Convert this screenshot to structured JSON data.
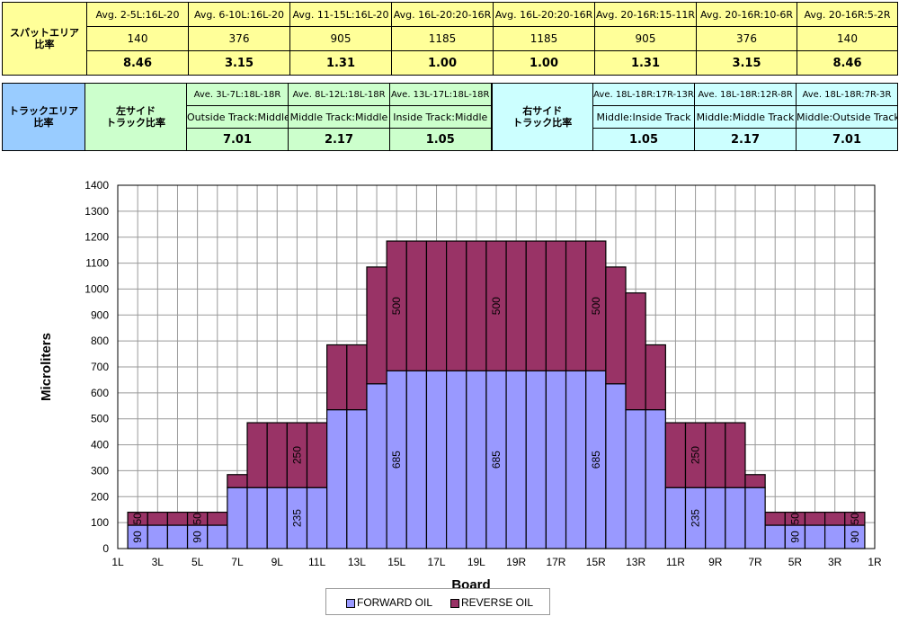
{
  "spot_table": {
    "label": "スパットエリア\n比率",
    "headers": [
      "Avg. 2-5L:16L-20",
      "Avg. 6-10L:16L-20",
      "Avg. 11-15L:16L-20",
      "Avg. 16L-20:20-16R",
      "Avg. 16L-20:20-16R",
      "Avg. 20-16R:15-11R",
      "Avg. 20-16R:10-6R",
      "Avg. 20-16R:5-2R"
    ],
    "values": [
      "140",
      "376",
      "905",
      "1185",
      "1185",
      "905",
      "376",
      "140"
    ],
    "ratios": [
      "8.46",
      "3.15",
      "1.31",
      "1.00",
      "1.00",
      "1.31",
      "3.15",
      "8.46"
    ]
  },
  "track_table": {
    "label": "トラックエリア\n比率",
    "left_label": "左サイド\nトラック比率",
    "right_label": "右サイド\nトラック比率",
    "left_headers": [
      "Ave. 3L-7L:18L-18R",
      "Ave. 8L-12L:18L-18R",
      "Ave. 13L-17L:18L-18R"
    ],
    "left_tracks": [
      "Outside Track:Middle",
      "Middle Track:Middle",
      "Inside Track:Middle"
    ],
    "left_ratios": [
      "7.01",
      "2.17",
      "1.05"
    ],
    "right_headers": [
      "Ave. 18L-18R:17R-13R",
      "Ave. 18L-18R:12R-8R",
      "Ave. 18L-18R:7R-3R"
    ],
    "right_tracks": [
      "Middle:Inside Track",
      "Middle:Middle Track",
      "Middle:Outside Track"
    ],
    "right_ratios": [
      "1.05",
      "2.17",
      "7.01"
    ]
  },
  "chart_data": {
    "type": "bar",
    "stacked": true,
    "xlabel": "Board",
    "ylabel": "Microliters",
    "ylim": [
      0,
      1400
    ],
    "yticks": [
      0,
      100,
      200,
      300,
      400,
      500,
      600,
      700,
      800,
      900,
      1000,
      1100,
      1200,
      1300,
      1400
    ],
    "x_tick_labels": [
      "1L",
      "3L",
      "5L",
      "7L",
      "9L",
      "11L",
      "13L",
      "15L",
      "17L",
      "19L",
      "19R",
      "17R",
      "15R",
      "13R",
      "11R",
      "9R",
      "7R",
      "5R",
      "3R",
      "1R"
    ],
    "categories": [
      "1L",
      "2L",
      "3L",
      "4L",
      "5L",
      "6L",
      "7L",
      "8L",
      "9L",
      "10L",
      "11L",
      "12L",
      "13L",
      "14L",
      "15L",
      "16L",
      "17L",
      "18L",
      "19L",
      "20",
      "19R",
      "18R",
      "17R",
      "16R",
      "15R",
      "14R",
      "13R",
      "12R",
      "11R",
      "10R",
      "9R",
      "8R",
      "7R",
      "6R",
      "5R",
      "4R",
      "3R",
      "2R",
      "1R"
    ],
    "series": [
      {
        "name": "FORWARD OIL",
        "color": "#9999ff",
        "values": [
          0,
          90,
          90,
          90,
          90,
          90,
          235,
          235,
          235,
          235,
          235,
          535,
          535,
          635,
          685,
          685,
          685,
          685,
          685,
          685,
          685,
          685,
          685,
          685,
          685,
          635,
          535,
          535,
          235,
          235,
          235,
          235,
          235,
          90,
          90,
          90,
          90,
          90,
          0
        ]
      },
      {
        "name": "REVERSE OIL",
        "color": "#993366",
        "values": [
          0,
          50,
          50,
          50,
          50,
          50,
          50,
          250,
          250,
          250,
          250,
          250,
          250,
          450,
          500,
          500,
          500,
          500,
          500,
          500,
          500,
          500,
          500,
          500,
          500,
          450,
          450,
          250,
          250,
          250,
          250,
          250,
          50,
          50,
          50,
          50,
          50,
          50,
          0
        ]
      }
    ],
    "data_labels": [
      {
        "index": 1,
        "series": 0,
        "text": "90"
      },
      {
        "index": 4,
        "series": 0,
        "text": "90"
      },
      {
        "index": 1,
        "series": 1,
        "text": "50"
      },
      {
        "index": 4,
        "series": 1,
        "text": "50"
      },
      {
        "index": 9,
        "series": 0,
        "text": "235"
      },
      {
        "index": 9,
        "series": 1,
        "text": "250"
      },
      {
        "index": 14,
        "series": 0,
        "text": "685"
      },
      {
        "index": 14,
        "series": 1,
        "text": "500"
      },
      {
        "index": 19,
        "series": 0,
        "text": "685"
      },
      {
        "index": 19,
        "series": 1,
        "text": "500"
      },
      {
        "index": 24,
        "series": 0,
        "text": "685"
      },
      {
        "index": 24,
        "series": 1,
        "text": "500"
      },
      {
        "index": 29,
        "series": 0,
        "text": "235"
      },
      {
        "index": 29,
        "series": 1,
        "text": "250"
      },
      {
        "index": 34,
        "series": 0,
        "text": "90"
      },
      {
        "index": 37,
        "series": 0,
        "text": "90"
      },
      {
        "index": 34,
        "series": 1,
        "text": "50"
      },
      {
        "index": 37,
        "series": 1,
        "text": "50"
      }
    ],
    "grid": true,
    "legend": "bottom-center"
  }
}
